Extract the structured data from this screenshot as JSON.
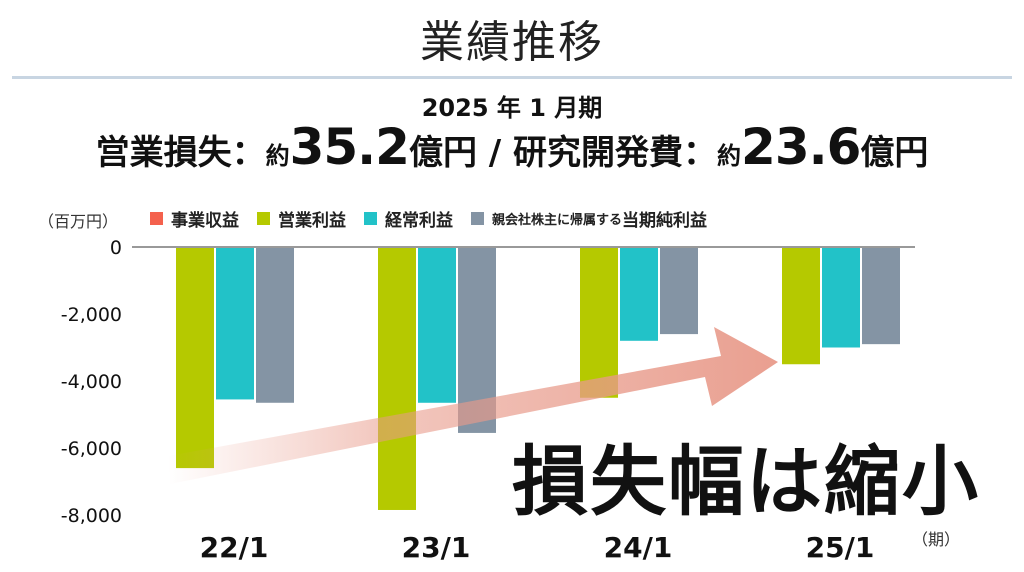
{
  "title": "業績推移",
  "headline": {
    "period": "2025 年 1 月期",
    "op_loss_label": "営業損失：",
    "approx1": "約",
    "op_loss_value": "35.2",
    "unit1": "億円",
    "separator": " / ",
    "rd_label": "研究開発費：",
    "approx2": "約",
    "rd_value": "23.6",
    "unit2": "億円"
  },
  "callout": "損失幅は縮小",
  "colors": {
    "revenue": "#f4614d",
    "operating": "#b5c900",
    "ordinary": "#22c2c8",
    "net": "#8494a4",
    "arrow": "#e89a8a"
  },
  "legend_net_prefix": "親会社株主に帰属する",
  "legend_net_suffix": "当期純利益",
  "chart_data": {
    "type": "bar",
    "unit_label": "（百万円）",
    "x_unit_label": "（期）",
    "categories": [
      "22/1",
      "23/1",
      "24/1",
      "25/1"
    ],
    "series": [
      {
        "name": "事業収益",
        "values": [
          0,
          0,
          0,
          0
        ]
      },
      {
        "name": "営業利益",
        "values": [
          -6600,
          -7850,
          -4500,
          -3500
        ]
      },
      {
        "name": "経常利益",
        "values": [
          -4550,
          -4650,
          -2800,
          -3000
        ]
      },
      {
        "name": "親会社株主に帰属する当期純利益",
        "values": [
          -4650,
          -5550,
          -2600,
          -2900
        ]
      }
    ],
    "ylim": [
      -8000,
      0
    ],
    "yticks": [
      0,
      -2000,
      -4000,
      -6000,
      -8000
    ],
    "ytick_labels": [
      "0",
      "-2,000",
      "-4,000",
      "-6,000",
      "-8,000"
    ]
  }
}
